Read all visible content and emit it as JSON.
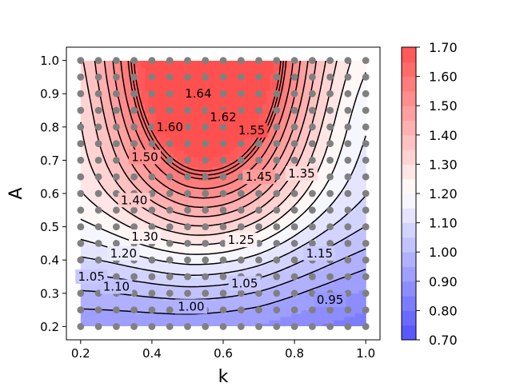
{
  "chart_data": {
    "type": "contour",
    "xlabel": "k",
    "ylabel": "A",
    "xlim": [
      0.16,
      1.04
    ],
    "ylim": [
      0.16,
      1.04
    ],
    "x_ticks": [
      0.2,
      0.4,
      0.6,
      0.8,
      1.0
    ],
    "x_tick_labels": [
      "0.2",
      "0.4",
      "0.6",
      "0.8",
      "1.0"
    ],
    "y_ticks": [
      0.2,
      0.3,
      0.4,
      0.5,
      0.6,
      0.7,
      0.8,
      0.9,
      1.0
    ],
    "y_tick_labels": [
      "0.2",
      "0.3",
      "0.4",
      "0.5",
      "0.6",
      "0.7",
      "0.8",
      "0.9",
      "1.0"
    ],
    "grid": false,
    "colormap": "bwr",
    "colorbar": {
      "range": [
        0.7,
        1.7
      ],
      "ticks": [
        0.7,
        0.8,
        0.9,
        1.0,
        1.1,
        1.2,
        1.3,
        1.4,
        1.5,
        1.6,
        1.7
      ],
      "tick_labels": [
        "0.70",
        "0.80",
        "0.90",
        "1.00",
        "1.10",
        "1.20",
        "1.30",
        "1.40",
        "1.50",
        "1.60",
        "1.70"
      ],
      "low_color": "#5050ff",
      "mid_color": "#ffffff",
      "high_color": "#ff5050"
    },
    "contour_levels": [
      0.95,
      1.0,
      1.05,
      1.1,
      1.15,
      1.2,
      1.25,
      1.3,
      1.35,
      1.4,
      1.45,
      1.5,
      1.55,
      1.6,
      1.62,
      1.64
    ],
    "contour_labels": [
      {
        "text": "1.64",
        "x": 0.53,
        "y": 0.9
      },
      {
        "text": "1.62",
        "x": 0.6,
        "y": 0.83
      },
      {
        "text": "1.60",
        "x": 0.45,
        "y": 0.8
      },
      {
        "text": "1.55",
        "x": 0.68,
        "y": 0.79
      },
      {
        "text": "1.50",
        "x": 0.38,
        "y": 0.71
      },
      {
        "text": "1.45",
        "x": 0.7,
        "y": 0.65
      },
      {
        "text": "1.35",
        "x": 0.82,
        "y": 0.66
      },
      {
        "text": "1.40",
        "x": 0.35,
        "y": 0.58
      },
      {
        "text": "1.30",
        "x": 0.38,
        "y": 0.47
      },
      {
        "text": "1.25",
        "x": 0.65,
        "y": 0.46
      },
      {
        "text": "1.20",
        "x": 0.32,
        "y": 0.42
      },
      {
        "text": "1.15",
        "x": 0.87,
        "y": 0.42
      },
      {
        "text": "1.05",
        "x": 0.23,
        "y": 0.35
      },
      {
        "text": "1.10",
        "x": 0.3,
        "y": 0.32
      },
      {
        "text": "1.05",
        "x": 0.66,
        "y": 0.33
      },
      {
        "text": "1.00",
        "x": 0.51,
        "y": 0.26
      },
      {
        "text": "0.95",
        "x": 0.9,
        "y": 0.28
      }
    ],
    "sample_points": {
      "k_values": [
        0.2,
        0.25,
        0.3,
        0.35,
        0.4,
        0.45,
        0.5,
        0.55,
        0.6,
        0.65,
        0.7,
        0.75,
        0.8,
        0.85,
        0.9,
        0.95,
        1.0
      ],
      "A_values": [
        0.2,
        0.25,
        0.3,
        0.35,
        0.4,
        0.45,
        0.5,
        0.55,
        0.6,
        0.65,
        0.7,
        0.75,
        0.8,
        0.85,
        0.9,
        0.95,
        1.0
      ],
      "color": "#808080"
    }
  }
}
